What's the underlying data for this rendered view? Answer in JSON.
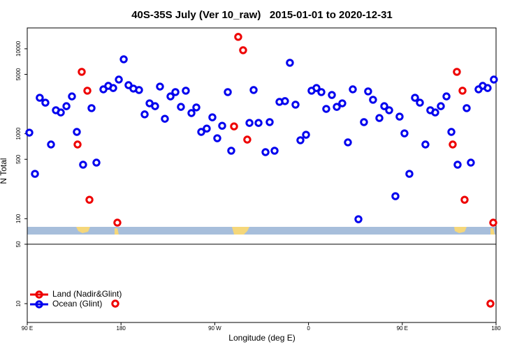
{
  "chart_data": {
    "type": "scatter",
    "title": "40S-35S July (Ver 10_raw)   2015-01-01 to 2020-12-31",
    "x_label": "Longitude (deg E)",
    "y_label": "N Total",
    "log_y": true,
    "xlim": [
      90,
      540
    ],
    "ylim": [
      6,
      17600
    ],
    "xticks": [
      {
        "value": 90,
        "label": "90 E"
      },
      180,
      {
        "value": 270,
        "label": "90 W"
      },
      {
        "value": 360,
        "label": "0"
      },
      {
        "value": 450,
        "label": "90 E"
      },
      {
        "value": 540,
        "label": "180"
      }
    ],
    "yticks": [
      10,
      50,
      100,
      500,
      1000,
      5000,
      10000
    ],
    "hline": 50,
    "legend": "bottom-left",
    "series": [
      {
        "name": "Land (Nadir&Glint)",
        "color": "#ee0000",
        "x": [
          142.3,
          147.7,
          138.3,
          149.7,
          176.5,
          292.5,
          297.2,
          288.5,
          301.2,
          502.4,
          507.8,
          498.4,
          509.8,
          537.3,
          174.5,
          534.6
        ],
        "values": [
          5350,
          3210,
          747,
          167,
          89.8,
          13800,
          9620,
          1220,
          853,
          5350,
          3210,
          747,
          167,
          89.8,
          10,
          10
        ]
      },
      {
        "name": "Ocean (Glint)",
        "color": "#0000ee",
        "x": [
          92,
          97.4,
          102,
          107.4,
          112.8,
          117.5,
          122.2,
          127.6,
          132.9,
          137.6,
          143.6,
          151.7,
          156.4,
          163.1,
          167.8,
          172.5,
          177.9,
          182.6,
          187.2,
          191.9,
          197.3,
          202.7,
          207.4,
          212.7,
          217.4,
          222.1,
          227.5,
          232.2,
          237.5,
          242.2,
          247.6,
          252.3,
          257,
          262.3,
          267.7,
          272.4,
          277.1,
          282.5,
          285.8,
          303.3,
          307.3,
          312,
          318.7,
          322.7,
          327.4,
          332.1,
          337.4,
          342.1,
          347.5,
          352.2,
          357.6,
          362.9,
          367.6,
          372.3,
          377,
          382.4,
          387.1,
          392.4,
          397.8,
          402.5,
          407.9,
          413.2,
          417.2,
          421.9,
          428,
          432.7,
          437.4,
          443.4,
          447.4,
          452.1,
          456.8,
          462.2,
          466.9,
          472.2,
          476.9,
          481.6,
          487,
          492.4,
          497.1,
          503.1,
          511.8,
          515.8,
          523.2,
          527.2,
          531.9,
          537.9
        ],
        "values": [
          1030,
          337,
          2650,
          2320,
          747,
          1890,
          1780,
          2110,
          2750,
          1050,
          432,
          2000,
          457,
          3330,
          3660,
          3450,
          4340,
          7520,
          3730,
          3400,
          3270,
          1690,
          2280,
          2110,
          3590,
          1500,
          2750,
          3090,
          2070,
          3210,
          1750,
          2040,
          1050,
          1150,
          1560,
          885,
          1240,
          3090,
          631,
          1340,
          3270,
          1340,
          607,
          1370,
          631,
          2370,
          2420,
          6840,
          2200,
          838,
          973,
          3210,
          3450,
          3090,
          1960,
          2860,
          2070,
          2280,
          791,
          3330,
          98.6,
          1370,
          3150,
          2510,
          1530,
          2110,
          1890,
          184,
          1590,
          1010,
          337,
          2650,
          2320,
          747,
          1890,
          1780,
          2110,
          2750,
          1050,
          432,
          2000,
          457,
          3330,
          3660,
          3450,
          4340
        ]
      }
    ]
  }
}
